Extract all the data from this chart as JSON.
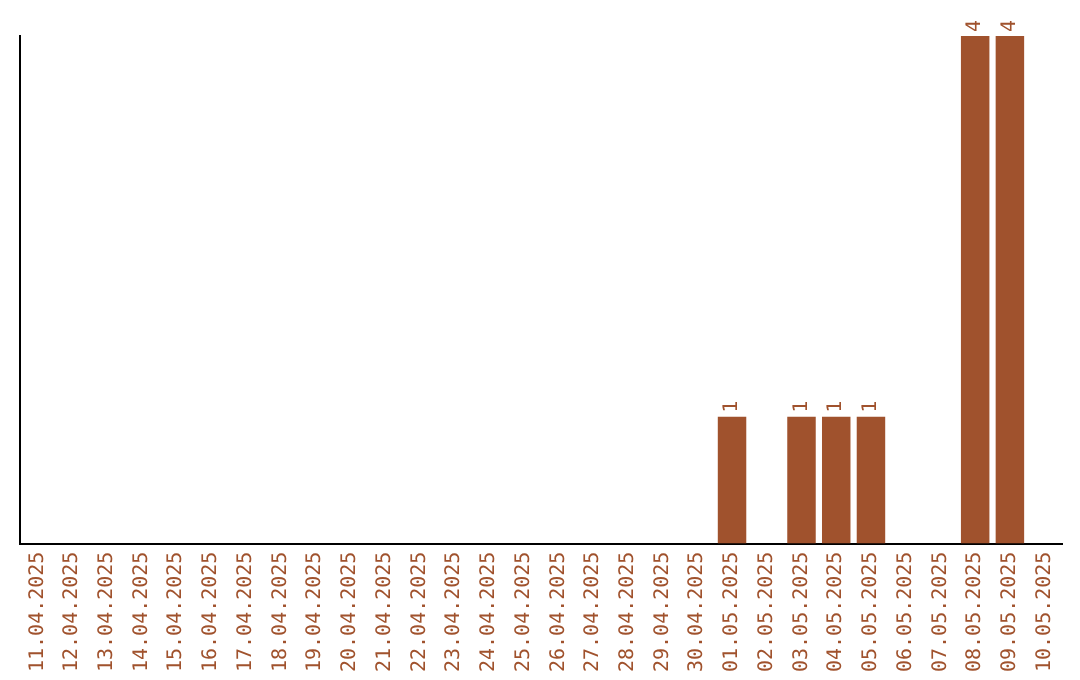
{
  "chart_data": {
    "type": "bar",
    "categories": [
      "11.04.2025",
      "12.04.2025",
      "13.04.2025",
      "14.04.2025",
      "15.04.2025",
      "16.04.2025",
      "17.04.2025",
      "18.04.2025",
      "19.04.2025",
      "20.04.2025",
      "21.04.2025",
      "22.04.2025",
      "23.04.2025",
      "24.04.2025",
      "25.04.2025",
      "26.04.2025",
      "27.04.2025",
      "28.04.2025",
      "29.04.2025",
      "30.04.2025",
      "01.05.2025",
      "02.05.2025",
      "03.05.2025",
      "04.05.2025",
      "05.05.2025",
      "06.05.2025",
      "07.05.2025",
      "08.05.2025",
      "09.05.2025",
      "10.05.2025"
    ],
    "values": [
      null,
      null,
      null,
      null,
      null,
      null,
      null,
      null,
      null,
      null,
      null,
      null,
      null,
      null,
      null,
      null,
      null,
      null,
      null,
      null,
      1,
      null,
      1,
      1,
      1,
      null,
      null,
      4,
      4,
      null
    ],
    "data_labels": true,
    "color": "#a0522d",
    "ylim": [
      0,
      4
    ],
    "tick_labels": "x",
    "grid": false,
    "legend": false
  }
}
